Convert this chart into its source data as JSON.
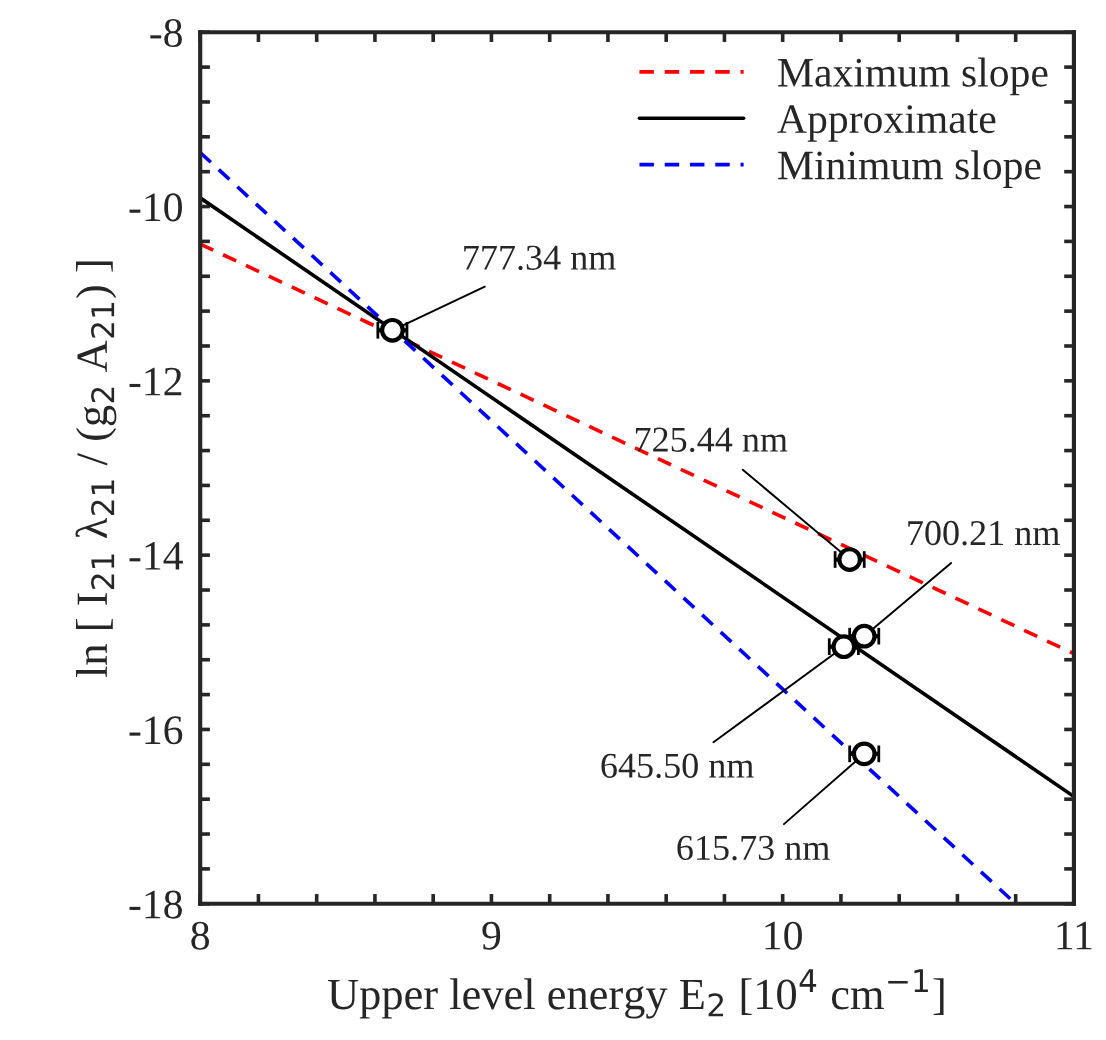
{
  "chart_data": {
    "type": "line",
    "xlabel": "Upper level energy E$_{2}$ [10$^{4}$ cm$^{−1}$]",
    "ylabel": "ln [ I$_{21}$ λ$_{21}$ / (g$_{2}$ A$_{21}$) ]",
    "xlim": [
      8,
      11
    ],
    "ylim": [
      -18,
      -8
    ],
    "xticks": [
      8,
      {
        "value": 8.2,
        "label": null
      },
      {
        "value": 8.4,
        "label": null
      },
      {
        "value": 8.6,
        "label": null
      },
      {
        "value": 8.8,
        "label": null
      },
      9,
      {
        "value": 9.2,
        "label": null
      },
      {
        "value": 9.4,
        "label": null
      },
      {
        "value": 9.6,
        "label": null
      },
      {
        "value": 9.8,
        "label": null
      },
      10,
      {
        "value": 10.2,
        "label": null
      },
      {
        "value": 10.4,
        "label": null
      },
      {
        "value": 10.6,
        "label": null
      },
      {
        "value": 10.8,
        "label": null
      },
      11
    ],
    "yticks": [
      -18,
      {
        "value": -17.6,
        "label": null
      },
      {
        "value": -17.2,
        "label": null
      },
      {
        "value": -16.8,
        "label": null
      },
      {
        "value": -16.4,
        "label": null
      },
      -16,
      {
        "value": -15.6,
        "label": null
      },
      {
        "value": -15.2,
        "label": null
      },
      {
        "value": -14.8,
        "label": null
      },
      {
        "value": -14.4,
        "label": null
      },
      -14,
      {
        "value": -13.6,
        "label": null
      },
      {
        "value": -13.2,
        "label": null
      },
      {
        "value": -12.8,
        "label": null
      },
      {
        "value": -12.4,
        "label": null
      },
      -12,
      {
        "value": -11.6,
        "label": null
      },
      {
        "value": -11.2,
        "label": null
      },
      {
        "value": -10.8,
        "label": null
      },
      {
        "value": -10.4,
        "label": null
      },
      -10,
      {
        "value": -9.6,
        "label": null
      },
      {
        "value": -9.2,
        "label": null
      },
      {
        "value": -8.8,
        "label": null
      },
      {
        "value": -8.4,
        "label": null
      },
      -8
    ],
    "grid": false,
    "legend": "top right",
    "series": [
      {
        "name": "Maximum slope",
        "color": "#ff0000",
        "line_style": "dashed",
        "marker": "none",
        "x": [
          8,
          11
        ],
        "values": [
          -10.43,
          -15.13
        ]
      },
      {
        "name": "Approximate",
        "color": "#000000",
        "line_style": "solid",
        "marker": "none",
        "x": [
          8,
          11
        ],
        "values": [
          -9.9,
          -16.77
        ]
      },
      {
        "name": "Minimum slope",
        "color": "#0000ff",
        "line_style": "dashed",
        "marker": "none",
        "x": [
          8,
          10.8
        ],
        "values": [
          -9.38,
          -18
        ]
      },
      {
        "type": "scatter",
        "color": "#000000",
        "marker": "circle",
        "x": [
          8.66,
          10.23,
          10.28,
          10.21,
          10.28
        ],
        "values": [
          -11.42,
          -14.05,
          -14.93,
          -15.05,
          -16.28
        ],
        "xerrors": [
          0.05,
          0.05,
          0.05,
          0.05,
          0.05
        ]
      }
    ],
    "annotations": [
      {
        "text": "777.34 nm",
        "x": 8.66,
        "y": -11.42
      },
      {
        "text": "725.44 nm",
        "x": 10.23,
        "y": -14.05
      },
      {
        "text": "700.21 nm",
        "x": 10.28,
        "y": -14.93
      },
      {
        "text": "645.50 nm",
        "x": 10.21,
        "y": -15.05
      },
      {
        "text": "615.73 nm",
        "x": 10.28,
        "y": -16.28
      }
    ]
  }
}
